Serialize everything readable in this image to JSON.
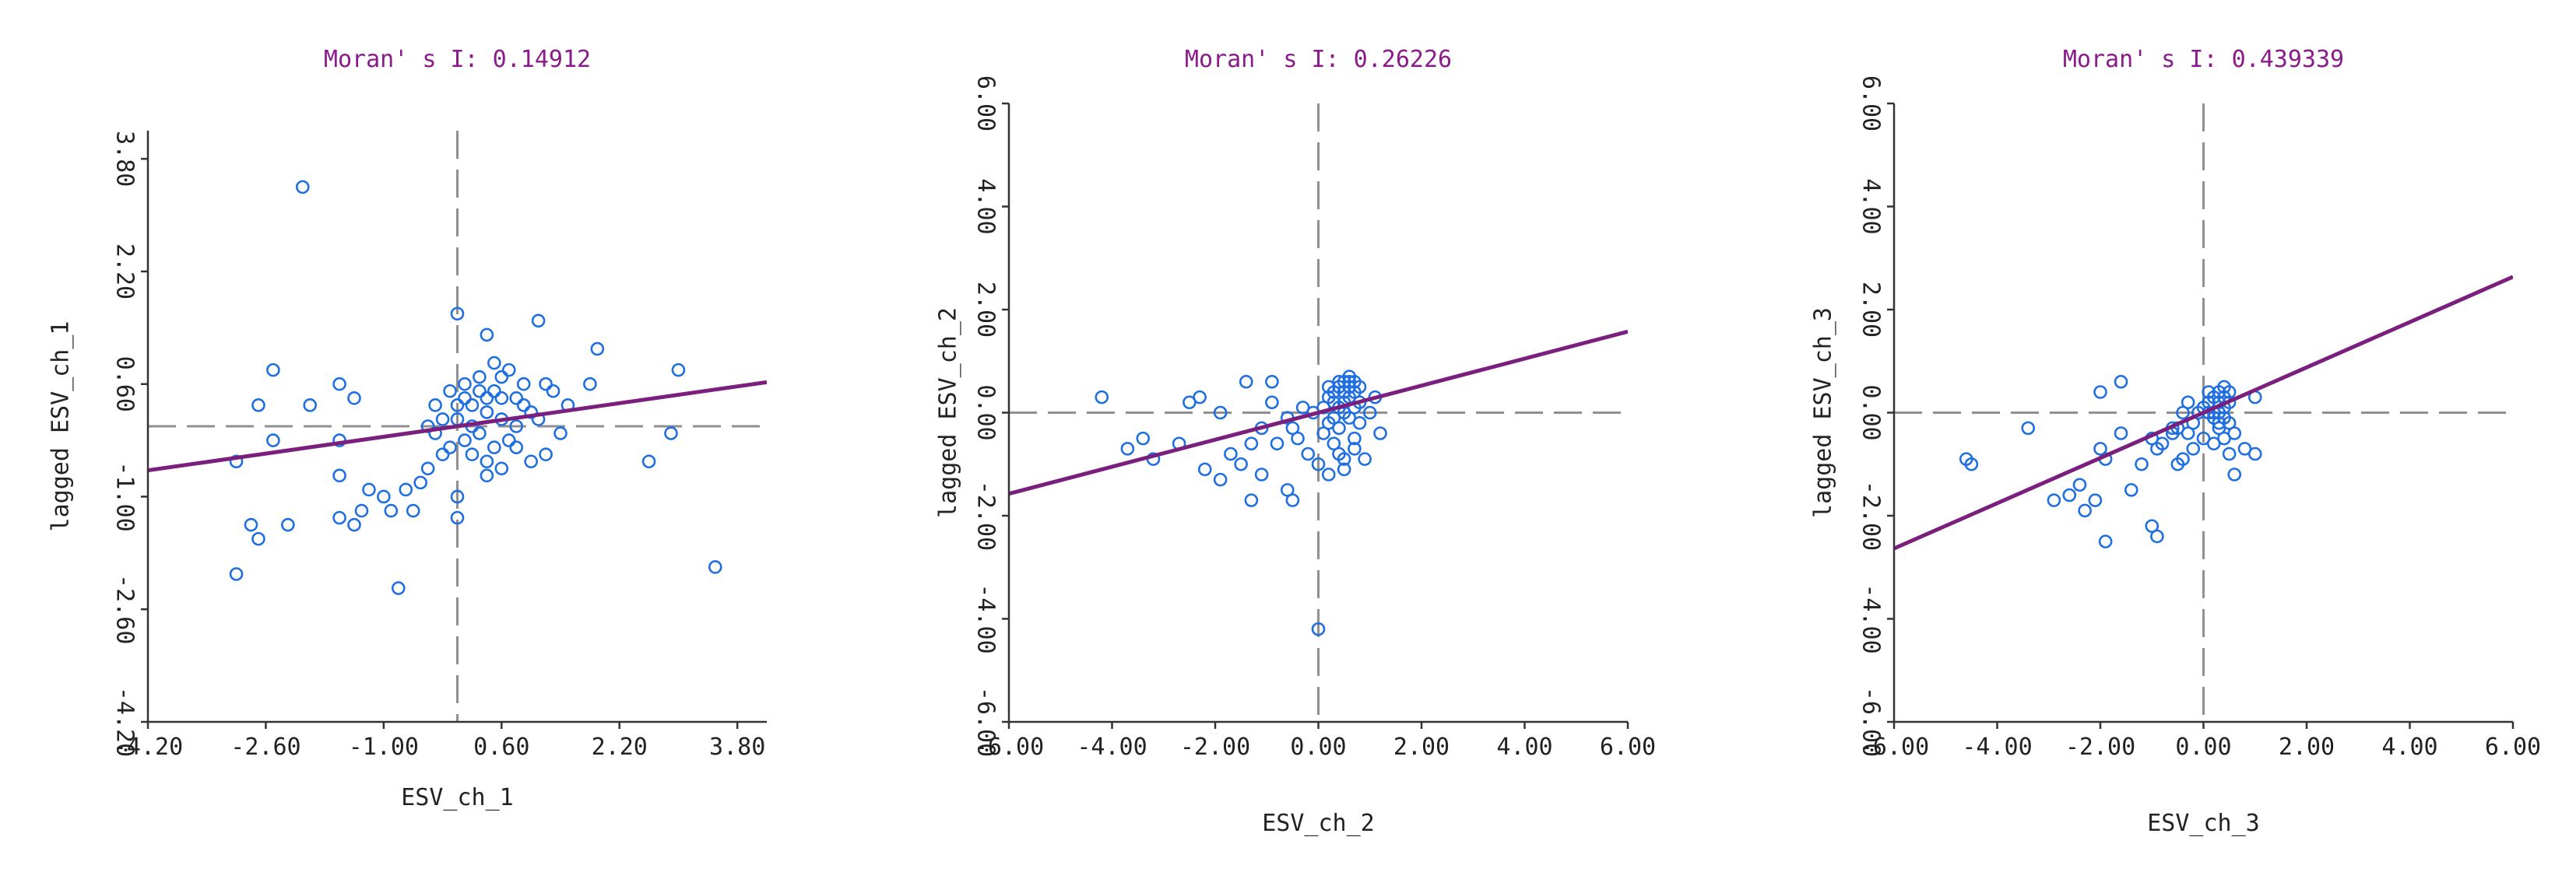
{
  "chart_data": [
    {
      "type": "scatter",
      "title": "Moran' s I: 0.14912",
      "xlabel": "ESV_ch_1",
      "ylabel": "lagged ESV_ch_1",
      "xlim": [
        -4.2,
        4.2
      ],
      "ylim": [
        -4.2,
        4.2
      ],
      "x_ticks": [
        "-4.20",
        "-2.60",
        "-1.00",
        "0.60",
        "2.20",
        "3.80"
      ],
      "y_ticks": [
        "-4.20",
        "-2.60",
        "-1.00",
        "0.60",
        "2.20",
        "3.80"
      ],
      "tick_values": [
        -4.2,
        -2.6,
        -1.0,
        0.6,
        2.2,
        3.8
      ],
      "reference_lines": {
        "x": 0.0,
        "y": 0.0
      },
      "fit_line": {
        "slope": 0.14912,
        "intercept": 0.0
      },
      "points": [
        [
          -2.1,
          3.4
        ],
        [
          0.0,
          1.6
        ],
        [
          1.1,
          1.5
        ],
        [
          0.4,
          1.3
        ],
        [
          1.9,
          1.1
        ],
        [
          1.8,
          0.6
        ],
        [
          3.0,
          0.8
        ],
        [
          -2.5,
          0.8
        ],
        [
          -1.6,
          0.6
        ],
        [
          -1.4,
          0.4
        ],
        [
          -2.0,
          0.3
        ],
        [
          -2.7,
          0.3
        ],
        [
          -1.6,
          -0.2
        ],
        [
          -2.5,
          -0.2
        ],
        [
          -3.0,
          -0.5
        ],
        [
          -1.6,
          -0.7
        ],
        [
          -1.2,
          -0.9
        ],
        [
          -1.0,
          -1.0
        ],
        [
          -0.7,
          -0.9
        ],
        [
          -0.5,
          -0.8
        ],
        [
          -0.9,
          -1.2
        ],
        [
          -1.3,
          -1.2
        ],
        [
          -1.6,
          -1.3
        ],
        [
          -1.4,
          -1.4
        ],
        [
          -2.3,
          -1.4
        ],
        [
          -2.8,
          -1.4
        ],
        [
          -2.7,
          -1.6
        ],
        [
          -3.0,
          -2.1
        ],
        [
          -0.8,
          -2.3
        ],
        [
          -0.6,
          -1.2
        ],
        [
          -0.4,
          -0.6
        ],
        [
          -0.2,
          -0.4
        ],
        [
          0.0,
          -1.3
        ],
        [
          0.0,
          -1.0
        ],
        [
          0.4,
          -0.7
        ],
        [
          0.6,
          -0.6
        ],
        [
          1.0,
          -0.5
        ],
        [
          1.2,
          -0.4
        ],
        [
          0.8,
          -0.3
        ],
        [
          1.4,
          -0.1
        ],
        [
          2.6,
          -0.5
        ],
        [
          2.9,
          -0.1
        ],
        [
          3.5,
          -2.0
        ],
        [
          1.5,
          0.3
        ],
        [
          1.3,
          0.5
        ],
        [
          0.9,
          0.6
        ],
        [
          0.7,
          0.8
        ],
        [
          0.5,
          0.9
        ],
        [
          0.3,
          0.7
        ],
        [
          0.1,
          0.6
        ],
        [
          -0.1,
          0.5
        ],
        [
          -0.3,
          0.3
        ],
        [
          0.2,
          0.3
        ],
        [
          0.4,
          0.2
        ],
        [
          0.6,
          0.1
        ],
        [
          0.8,
          0.0
        ],
        [
          0.3,
          -0.1
        ],
        [
          0.1,
          -0.2
        ],
        [
          -0.1,
          -0.3
        ],
        [
          0.5,
          -0.3
        ],
        [
          0.7,
          -0.2
        ],
        [
          0.2,
          0.0
        ],
        [
          0.0,
          0.1
        ],
        [
          0.4,
          0.4
        ],
        [
          0.6,
          0.4
        ],
        [
          0.9,
          0.3
        ],
        [
          -0.2,
          0.1
        ],
        [
          0.1,
          0.4
        ],
        [
          0.3,
          0.5
        ],
        [
          1.1,
          0.1
        ],
        [
          0.5,
          0.5
        ],
        [
          0.2,
          -0.4
        ],
        [
          0.8,
          0.4
        ],
        [
          1.0,
          0.2
        ],
        [
          -0.4,
          0.0
        ],
        [
          0.6,
          0.7
        ],
        [
          0.0,
          0.3
        ],
        [
          0.4,
          -0.5
        ],
        [
          -0.3,
          -0.1
        ],
        [
          1.2,
          0.6
        ]
      ]
    },
    {
      "type": "scatter",
      "title": "Moran' s I: 0.26226",
      "xlabel": "ESV_ch_2",
      "ylabel": "lagged ESV_ch_2",
      "xlim": [
        -6,
        6
      ],
      "ylim": [
        -6,
        6
      ],
      "x_ticks": [
        "-6.00",
        "-4.00",
        "-2.00",
        "0.00",
        "2.00",
        "4.00",
        "6.00"
      ],
      "y_ticks": [
        "-6.00",
        "-4.00",
        "-2.00",
        "0.00",
        "2.00",
        "4.00",
        "6.00"
      ],
      "tick_values": [
        -6,
        -4,
        -2,
        0,
        2,
        4,
        6
      ],
      "reference_lines": {
        "x": 0.0,
        "y": 0.0
      },
      "fit_line": {
        "slope": 0.26226,
        "intercept": 0.0
      },
      "points": [
        [
          -4.2,
          0.3
        ],
        [
          -3.7,
          -0.7
        ],
        [
          -3.4,
          -0.5
        ],
        [
          -3.2,
          -0.9
        ],
        [
          -2.5,
          0.2
        ],
        [
          -2.3,
          0.3
        ],
        [
          -2.7,
          -0.6
        ],
        [
          -2.2,
          -1.1
        ],
        [
          -1.9,
          -1.3
        ],
        [
          -1.7,
          -0.8
        ],
        [
          -1.5,
          -1.0
        ],
        [
          -1.3,
          -0.6
        ],
        [
          -1.4,
          0.6
        ],
        [
          -0.9,
          0.6
        ],
        [
          -1.1,
          -1.2
        ],
        [
          -1.3,
          -1.7
        ],
        [
          -0.6,
          -1.5
        ],
        [
          -0.5,
          -1.7
        ],
        [
          -0.8,
          -0.6
        ],
        [
          -0.5,
          -0.3
        ],
        [
          -0.3,
          0.1
        ],
        [
          -0.2,
          -0.8
        ],
        [
          0.0,
          -1.0
        ],
        [
          0.2,
          -1.2
        ],
        [
          0.3,
          -0.6
        ],
        [
          0.5,
          -0.9
        ],
        [
          0.7,
          -0.5
        ],
        [
          0.8,
          -0.2
        ],
        [
          1.0,
          0.0
        ],
        [
          1.1,
          0.3
        ],
        [
          1.2,
          -0.4
        ],
        [
          0.0,
          -4.2
        ],
        [
          -1.9,
          0.0
        ],
        [
          -1.1,
          -0.3
        ],
        [
          -0.9,
          0.2
        ],
        [
          0.1,
          0.1
        ],
        [
          0.2,
          0.3
        ],
        [
          0.3,
          0.4
        ],
        [
          0.4,
          0.5
        ],
        [
          0.5,
          0.6
        ],
        [
          0.6,
          0.5
        ],
        [
          0.7,
          0.4
        ],
        [
          0.6,
          0.7
        ],
        [
          0.5,
          0.2
        ],
        [
          0.4,
          0.1
        ],
        [
          0.3,
          -0.1
        ],
        [
          0.2,
          -0.2
        ],
        [
          0.1,
          -0.4
        ],
        [
          0.6,
          -0.1
        ],
        [
          0.7,
          0.1
        ],
        [
          0.8,
          0.2
        ],
        [
          0.4,
          -0.3
        ],
        [
          0.5,
          0.0
        ],
        [
          0.6,
          0.3
        ],
        [
          0.3,
          0.2
        ],
        [
          0.2,
          0.5
        ],
        [
          0.7,
          0.6
        ],
        [
          0.8,
          0.5
        ],
        [
          0.6,
          0.6
        ],
        [
          0.5,
          0.4
        ],
        [
          0.4,
          0.6
        ],
        [
          0.7,
          -0.7
        ],
        [
          0.5,
          -1.1
        ],
        [
          0.9,
          -0.9
        ],
        [
          0.4,
          -0.8
        ],
        [
          -0.6,
          -0.1
        ],
        [
          -0.4,
          -0.5
        ],
        [
          -0.1,
          0.0
        ]
      ]
    },
    {
      "type": "scatter",
      "title": "Moran' s I: 0.439339",
      "xlabel": "ESV_ch_3",
      "ylabel": "lagged ESV_ch_3",
      "xlim": [
        -6,
        6
      ],
      "ylim": [
        -6,
        6
      ],
      "x_ticks": [
        "-6.00",
        "-4.00",
        "-2.00",
        "0.00",
        "2.00",
        "4.00",
        "6.00"
      ],
      "y_ticks": [
        "-6.00",
        "-4.00",
        "-2.00",
        "0.00",
        "2.00",
        "4.00",
        "6.00"
      ],
      "tick_values": [
        -6,
        -4,
        -2,
        0,
        2,
        4,
        6
      ],
      "reference_lines": {
        "x": 0.0,
        "y": 0.0
      },
      "fit_line": {
        "slope": 0.439339,
        "intercept": 0.0
      },
      "points": [
        [
          -4.6,
          -0.9
        ],
        [
          -4.5,
          -1.0
        ],
        [
          -3.4,
          -0.3
        ],
        [
          -2.9,
          -1.7
        ],
        [
          -2.6,
          -1.6
        ],
        [
          -2.4,
          -1.4
        ],
        [
          -2.3,
          -1.9
        ],
        [
          -2.1,
          -1.7
        ],
        [
          -2.0,
          0.4
        ],
        [
          -2.0,
          -0.7
        ],
        [
          -1.9,
          -2.5
        ],
        [
          -1.9,
          -0.9
        ],
        [
          -1.6,
          0.6
        ],
        [
          -1.6,
          -0.4
        ],
        [
          -1.4,
          -1.5
        ],
        [
          -1.2,
          -1.0
        ],
        [
          -1.0,
          -2.2
        ],
        [
          -0.9,
          -2.4
        ],
        [
          -1.0,
          -0.5
        ],
        [
          -0.9,
          -0.7
        ],
        [
          -0.8,
          -0.6
        ],
        [
          -0.6,
          -0.4
        ],
        [
          -0.5,
          -0.3
        ],
        [
          -0.4,
          0.0
        ],
        [
          -0.3,
          0.2
        ],
        [
          -0.2,
          -0.2
        ],
        [
          0.0,
          0.1
        ],
        [
          0.1,
          0.0
        ],
        [
          0.2,
          -0.1
        ],
        [
          0.3,
          0.2
        ],
        [
          0.4,
          0.3
        ],
        [
          0.5,
          0.4
        ],
        [
          0.4,
          0.5
        ],
        [
          0.3,
          0.4
        ],
        [
          0.2,
          0.3
        ],
        [
          0.5,
          -0.2
        ],
        [
          0.6,
          -0.4
        ],
        [
          0.5,
          -0.8
        ],
        [
          0.6,
          -1.2
        ],
        [
          0.8,
          -0.7
        ],
        [
          1.0,
          -0.8
        ],
        [
          1.0,
          0.3
        ],
        [
          0.1,
          0.4
        ],
        [
          0.0,
          -0.5
        ],
        [
          -0.2,
          -0.7
        ],
        [
          -0.4,
          -0.9
        ],
        [
          0.2,
          -0.6
        ],
        [
          0.3,
          -0.3
        ],
        [
          0.4,
          -0.5
        ],
        [
          0.1,
          0.2
        ],
        [
          -0.1,
          0.0
        ],
        [
          0.2,
          0.0
        ],
        [
          0.3,
          0.0
        ],
        [
          0.4,
          0.1
        ],
        [
          0.5,
          0.2
        ],
        [
          0.4,
          -0.1
        ],
        [
          0.3,
          -0.2
        ],
        [
          -0.3,
          -0.4
        ],
        [
          -0.6,
          -0.3
        ],
        [
          -0.5,
          -1.0
        ]
      ]
    }
  ]
}
